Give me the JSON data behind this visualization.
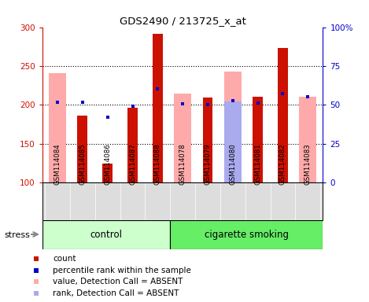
{
  "title": "GDS2490 / 213725_x_at",
  "samples": [
    "GSM114084",
    "GSM114085",
    "GSM114086",
    "GSM114087",
    "GSM114088",
    "GSM114078",
    "GSM114079",
    "GSM114080",
    "GSM114081",
    "GSM114082",
    "GSM114083"
  ],
  "control_count": 5,
  "smoking_count": 6,
  "groups": [
    "control",
    "cigarette smoking"
  ],
  "ylim_left": [
    100,
    300
  ],
  "ylim_right": [
    0,
    100
  ],
  "yticks_left": [
    100,
    150,
    200,
    250,
    300
  ],
  "ytick_labels_left": [
    "100",
    "150",
    "200",
    "250",
    "300"
  ],
  "ytick_labels_right": [
    "0",
    "25",
    "50",
    "75",
    "100%"
  ],
  "red_bars": [
    null,
    186,
    125,
    196,
    291,
    null,
    210,
    null,
    211,
    273,
    null
  ],
  "pink_bars": [
    241,
    null,
    null,
    null,
    null,
    215,
    null,
    243,
    null,
    null,
    211
  ],
  "blue_squares": [
    203,
    203,
    184,
    198,
    221,
    201,
    200,
    205,
    202,
    215,
    211
  ],
  "light_blue_bars": [
    null,
    null,
    null,
    null,
    null,
    null,
    null,
    52,
    null,
    null,
    null
  ],
  "bar_width": 0.4,
  "wide_bar_width": 0.7,
  "red_bar_color": "#cc1100",
  "pink_bar_color": "#ffaaaa",
  "blue_sq_color": "#0000cc",
  "light_blue_color": "#aaaaee",
  "control_bg": "#ccffcc",
  "smoking_bg": "#66ee66",
  "tick_area_bg": "#dddddd",
  "left_axis_color": "#cc1100",
  "right_axis_color": "#0000cc"
}
